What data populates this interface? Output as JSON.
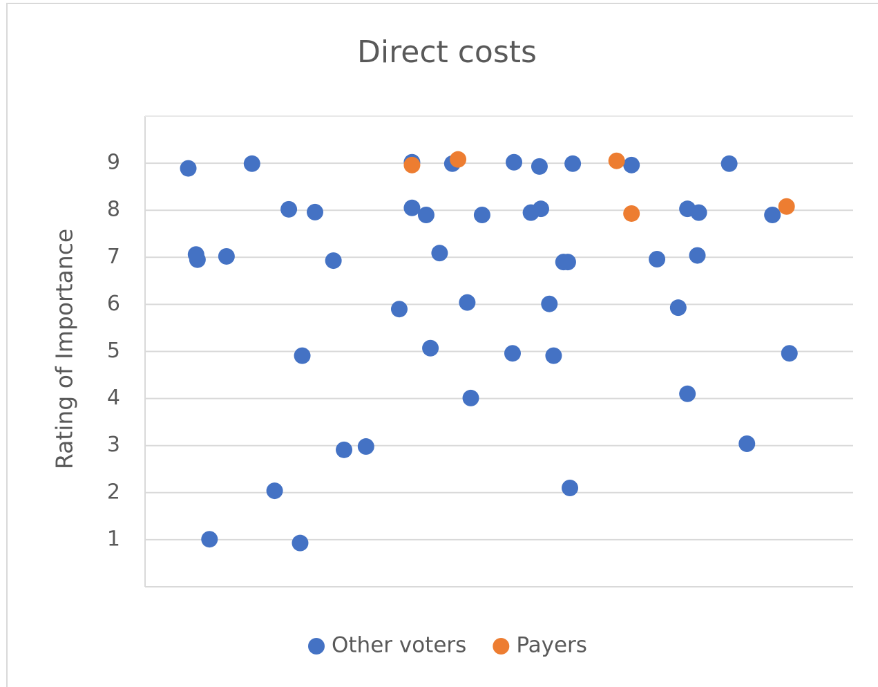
{
  "chart_data": {
    "type": "scatter",
    "title": "Direct costs",
    "y_label": "Rating of Importance",
    "xlim": [
      0,
      100
    ],
    "ylim": [
      0,
      10
    ],
    "yticks": [
      1,
      2,
      3,
      4,
      5,
      6,
      7,
      8,
      9
    ],
    "grid": true,
    "legend": "bottom",
    "series": [
      {
        "name": "Other voters",
        "color": "#4472c4",
        "x": [
          6.1,
          15.1,
          7.2,
          7.4,
          11.5,
          20.3,
          24.0,
          26.6,
          37.7,
          43.4,
          52.1,
          55.7,
          60.4,
          68.7,
          82.5,
          37.7,
          39.7,
          47.6,
          54.5,
          55.9,
          76.6,
          78.2,
          88.6,
          41.6,
          59.1,
          59.7,
          72.3,
          78.0,
          35.9,
          45.5,
          57.1,
          75.3,
          22.2,
          40.3,
          51.9,
          57.7,
          91.0,
          46.0,
          76.6,
          28.1,
          31.2,
          85.0,
          18.3,
          60.0,
          9.1,
          21.9
        ],
        "values": [
          8.89,
          8.99,
          7.06,
          6.95,
          7.02,
          8.02,
          7.96,
          6.93,
          9.02,
          8.99,
          9.02,
          8.93,
          8.99,
          8.96,
          8.99,
          8.05,
          7.9,
          7.9,
          7.95,
          8.03,
          8.03,
          7.95,
          7.9,
          7.09,
          6.9,
          6.9,
          6.96,
          7.04,
          5.9,
          6.04,
          6.01,
          5.93,
          4.91,
          5.07,
          4.96,
          4.91,
          4.96,
          4.01,
          4.1,
          2.91,
          2.98,
          3.04,
          2.04,
          2.1,
          1.01,
          0.93
        ]
      },
      {
        "name": "Payers",
        "color": "#ed7d31",
        "x": [
          37.7,
          44.2,
          66.6,
          68.7,
          90.6
        ],
        "values": [
          8.96,
          9.08,
          9.05,
          7.93,
          8.08
        ]
      }
    ]
  }
}
